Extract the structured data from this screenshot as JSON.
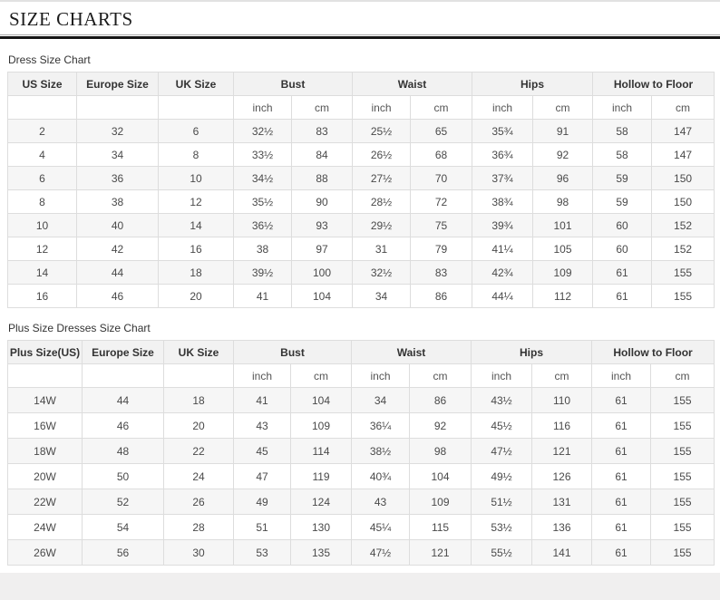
{
  "page": {
    "title": "SIZE CHARTS",
    "section1_label": "Dress Size Chart",
    "section2_label": "Plus Size Dresses Size Chart"
  },
  "colors": {
    "header_bg": "#f2f2f2",
    "row_alt_bg": "#f6f6f6",
    "border": "#dddddd",
    "title_rule": "#141414",
    "footer_band": "#f0efef"
  },
  "table1": {
    "columns": [
      "US Size",
      "Europe Size",
      "UK Size",
      "Bust",
      "Waist",
      "Hips",
      "Hollow to Floor"
    ],
    "subunits": [
      "inch",
      "cm"
    ],
    "rows": [
      [
        "2",
        "32",
        "6",
        "32½",
        "83",
        "25½",
        "65",
        "35¾",
        "91",
        "58",
        "147"
      ],
      [
        "4",
        "34",
        "8",
        "33½",
        "84",
        "26½",
        "68",
        "36¾",
        "92",
        "58",
        "147"
      ],
      [
        "6",
        "36",
        "10",
        "34½",
        "88",
        "27½",
        "70",
        "37¾",
        "96",
        "59",
        "150"
      ],
      [
        "8",
        "38",
        "12",
        "35½",
        "90",
        "28½",
        "72",
        "38¾",
        "98",
        "59",
        "150"
      ],
      [
        "10",
        "40",
        "14",
        "36½",
        "93",
        "29½",
        "75",
        "39¾",
        "101",
        "60",
        "152"
      ],
      [
        "12",
        "42",
        "16",
        "38",
        "97",
        "31",
        "79",
        "41¼",
        "105",
        "60",
        "152"
      ],
      [
        "14",
        "44",
        "18",
        "39½",
        "100",
        "32½",
        "83",
        "42¾",
        "109",
        "61",
        "155"
      ],
      [
        "16",
        "46",
        "20",
        "41",
        "104",
        "34",
        "86",
        "44¼",
        "112",
        "61",
        "155"
      ]
    ]
  },
  "table2": {
    "columns": [
      "Plus Size(US)",
      "Europe Size",
      "UK Size",
      "Bust",
      "Waist",
      "Hips",
      "Hollow to Floor"
    ],
    "subunits": [
      "inch",
      "cm"
    ],
    "rows": [
      [
        "14W",
        "44",
        "18",
        "41",
        "104",
        "34",
        "86",
        "43½",
        "110",
        "61",
        "155"
      ],
      [
        "16W",
        "46",
        "20",
        "43",
        "109",
        "36¼",
        "92",
        "45½",
        "116",
        "61",
        "155"
      ],
      [
        "18W",
        "48",
        "22",
        "45",
        "114",
        "38½",
        "98",
        "47½",
        "121",
        "61",
        "155"
      ],
      [
        "20W",
        "50",
        "24",
        "47",
        "119",
        "40¾",
        "104",
        "49½",
        "126",
        "61",
        "155"
      ],
      [
        "22W",
        "52",
        "26",
        "49",
        "124",
        "43",
        "109",
        "51½",
        "131",
        "61",
        "155"
      ],
      [
        "24W",
        "54",
        "28",
        "51",
        "130",
        "45¼",
        "115",
        "53½",
        "136",
        "61",
        "155"
      ],
      [
        "26W",
        "56",
        "30",
        "53",
        "135",
        "47½",
        "121",
        "55½",
        "141",
        "61",
        "155"
      ]
    ]
  }
}
